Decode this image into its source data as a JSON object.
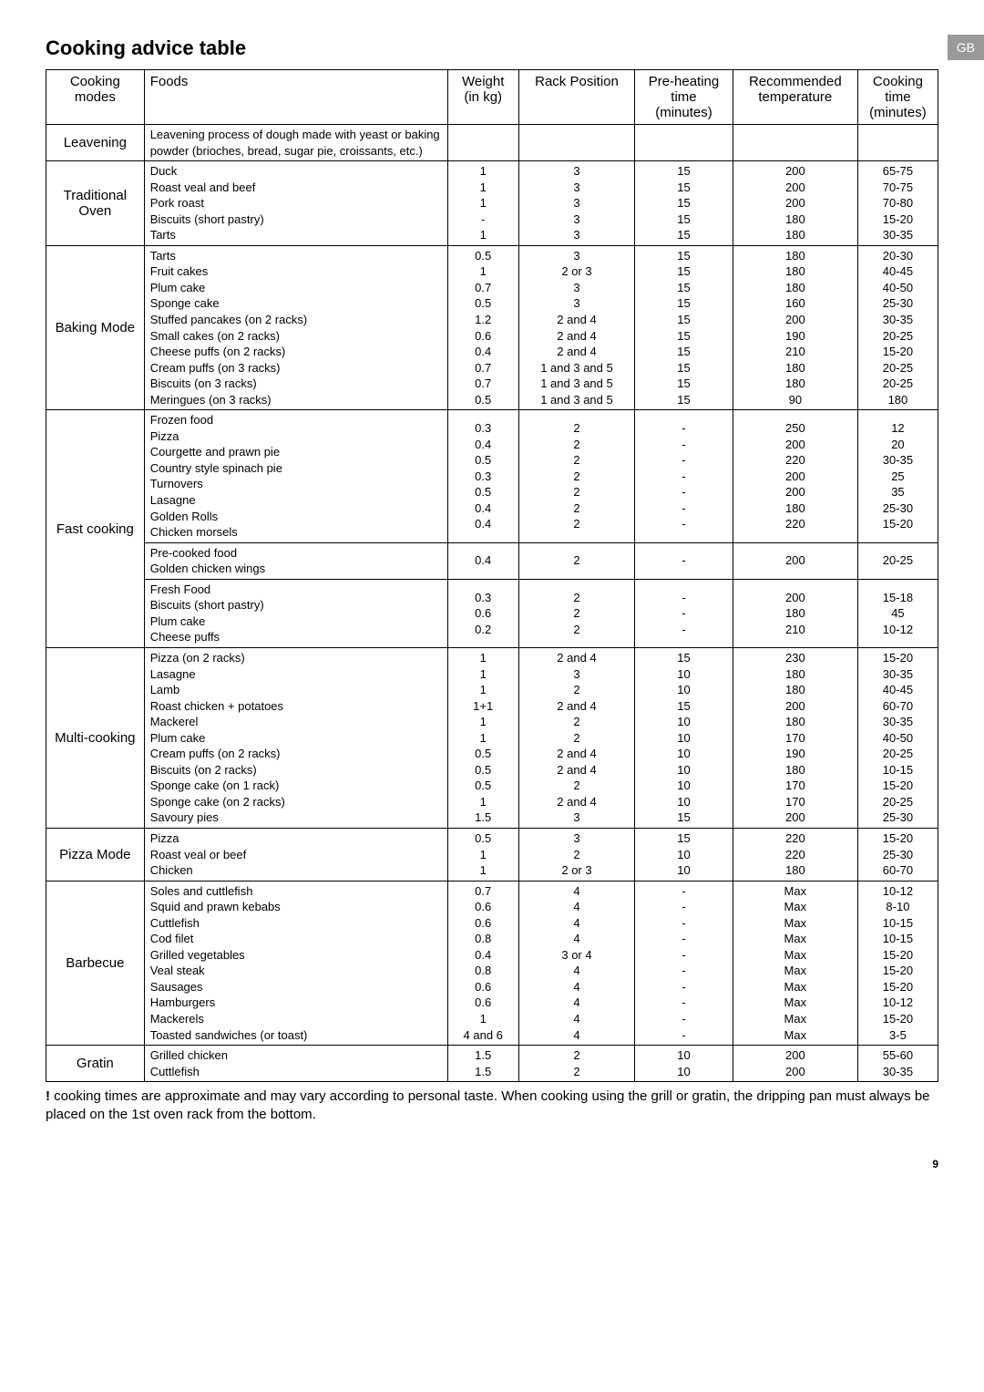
{
  "page": {
    "gb_label": "GB",
    "title": "Cooking advice table",
    "footnote_prefix": "!",
    "footnote": " cooking times are approximate and may vary according to personal taste.  When cooking using the grill or gratin, the dripping pan must always be placed on the 1st oven rack from the bottom.",
    "page_number": "9"
  },
  "headers": {
    "mode": "Cooking modes",
    "foods": "Foods",
    "weight": "Weight (in kg)",
    "rack": "Rack Position",
    "preheat": "Pre-heating time (minutes)",
    "temp": "Recommended temperature",
    "ctime": "Cooking time (minutes)"
  },
  "rows": [
    {
      "mode": "Leavening",
      "groups": [
        {
          "foods": [
            "Leavening process of dough made with yeast or baking powder (brioches, bread, sugar pie, croissants, etc.)"
          ],
          "weight": [
            ""
          ],
          "rack": [
            ""
          ],
          "preheat": [
            ""
          ],
          "temp": [
            ""
          ],
          "ctime": [
            ""
          ]
        }
      ]
    },
    {
      "mode": "Traditional Oven",
      "groups": [
        {
          "foods": [
            "Duck",
            "Roast veal and beef",
            "Pork roast",
            "Biscuits (short pastry)",
            "Tarts"
          ],
          "weight": [
            "1",
            "1",
            "1",
            "-",
            "1"
          ],
          "rack": [
            "3",
            "3",
            "3",
            "3",
            "3"
          ],
          "preheat": [
            "15",
            "15",
            "15",
            "15",
            "15"
          ],
          "temp": [
            "200",
            "200",
            "200",
            "180",
            "180"
          ],
          "ctime": [
            "65-75",
            "70-75",
            "70-80",
            "15-20",
            "30-35"
          ]
        }
      ]
    },
    {
      "mode": "Baking Mode",
      "groups": [
        {
          "foods": [
            "Tarts",
            "Fruit cakes",
            "Plum cake",
            "Sponge cake",
            "Stuffed pancakes (on 2 racks)",
            "Small cakes (on 2 racks)",
            "Cheese puffs (on 2 racks)",
            "Cream puffs (on 3 racks)",
            "Biscuits (on 3 racks)",
            "Meringues (on 3 racks)"
          ],
          "weight": [
            "0.5",
            "1",
            "0.7",
            "0.5",
            "1.2",
            "0.6",
            "0.4",
            "0.7",
            "0.7",
            "0.5"
          ],
          "rack": [
            "3",
            "2 or 3",
            "3",
            "3",
            "2 and 4",
            "2 and 4",
            "2 and 4",
            "1 and 3 and 5",
            "1 and 3 and 5",
            "1 and 3 and 5"
          ],
          "preheat": [
            "15",
            "15",
            "15",
            "15",
            "15",
            "15",
            "15",
            "15",
            "15",
            "15"
          ],
          "temp": [
            "180",
            "180",
            "180",
            "160",
            "200",
            "190",
            "210",
            "180",
            "180",
            "90"
          ],
          "ctime": [
            "20-30",
            "40-45",
            "40-50",
            "25-30",
            "30-35",
            "20-25",
            "15-20",
            "20-25",
            "20-25",
            "180"
          ]
        }
      ]
    },
    {
      "mode": "Fast cooking",
      "groups": [
        {
          "foods": [
            "Frozen food",
            "Pizza",
            "Courgette and prawn pie",
            "Country style spinach pie",
            "Turnovers",
            "Lasagne",
            "Golden Rolls",
            "Chicken morsels"
          ],
          "weight": [
            "",
            "0.3",
            "0.4",
            "0.5",
            "0.3",
            "0.5",
            "0.4",
            "0.4"
          ],
          "rack": [
            "",
            "2",
            "2",
            "2",
            "2",
            "2",
            "2",
            "2"
          ],
          "preheat": [
            "",
            "-",
            "-",
            "-",
            "-",
            "-",
            "-",
            "-"
          ],
          "temp": [
            "",
            "250",
            "200",
            "220",
            "200",
            "200",
            "180",
            "220"
          ],
          "ctime": [
            "",
            "12",
            "20",
            "30-35",
            "25",
            "35",
            "25-30",
            "15-20"
          ]
        },
        {
          "foods": [
            "Pre-cooked food",
            "Golden chicken wings"
          ],
          "weight": [
            "",
            "0.4"
          ],
          "rack": [
            "",
            "2"
          ],
          "preheat": [
            "",
            "-"
          ],
          "temp": [
            "",
            "200"
          ],
          "ctime": [
            "",
            "20-25"
          ]
        },
        {
          "foods": [
            "Fresh Food",
            "Biscuits (short pastry)",
            "Plum cake",
            "Cheese puffs"
          ],
          "weight": [
            "",
            "0.3",
            "0.6",
            "0.2"
          ],
          "rack": [
            "",
            "2",
            "2",
            "2"
          ],
          "preheat": [
            "",
            "-",
            "-",
            "-"
          ],
          "temp": [
            "",
            "200",
            "180",
            "210"
          ],
          "ctime": [
            "",
            "15-18",
            "45",
            "10-12"
          ]
        }
      ]
    },
    {
      "mode": "Multi-cooking",
      "groups": [
        {
          "foods": [
            "Pizza (on 2 racks)",
            "Lasagne",
            "Lamb",
            "Roast chicken + potatoes",
            "Mackerel",
            "Plum cake",
            "Cream puffs (on 2 racks)",
            "Biscuits (on 2 racks)",
            "Sponge cake (on 1 rack)",
            "Sponge cake (on 2 racks)",
            "Savoury pies"
          ],
          "weight": [
            "1",
            "1",
            "1",
            "1+1",
            "1",
            "1",
            "0.5",
            "0.5",
            "0.5",
            "1",
            "1.5"
          ],
          "rack": [
            "2 and 4",
            "3",
            "2",
            "2 and 4",
            "2",
            "2",
            "2 and 4",
            "2 and 4",
            "2",
            "2 and 4",
            "3"
          ],
          "preheat": [
            "15",
            "10",
            "10",
            "15",
            "10",
            "10",
            "10",
            "10",
            "10",
            "10",
            "15"
          ],
          "temp": [
            "230",
            "180",
            "180",
            "200",
            "180",
            "170",
            "190",
            "180",
            "170",
            "170",
            "200"
          ],
          "ctime": [
            "15-20",
            "30-35",
            "40-45",
            "60-70",
            "30-35",
            "40-50",
            "20-25",
            "10-15",
            "15-20",
            "20-25",
            "25-30"
          ]
        }
      ]
    },
    {
      "mode": "Pizza Mode",
      "groups": [
        {
          "foods": [
            "Pizza",
            "Roast veal or beef",
            "Chicken"
          ],
          "weight": [
            "0.5",
            "1",
            "1"
          ],
          "rack": [
            "3",
            "2",
            "2 or 3"
          ],
          "preheat": [
            "15",
            "10",
            "10"
          ],
          "temp": [
            "220",
            "220",
            "180"
          ],
          "ctime": [
            "15-20",
            "25-30",
            "60-70"
          ]
        }
      ]
    },
    {
      "mode": "Barbecue",
      "groups": [
        {
          "foods": [
            "Soles and cuttlefish",
            "Squid and prawn kebabs",
            "Cuttlefish",
            "Cod filet",
            "Grilled vegetables",
            "Veal steak",
            "Sausages",
            "Hamburgers",
            "Mackerels",
            "Toasted sandwiches (or toast)"
          ],
          "weight": [
            "0.7",
            "0.6",
            "0.6",
            "0.8",
            "0.4",
            "0.8",
            "0.6",
            "0.6",
            "1",
            "4 and 6"
          ],
          "rack": [
            "4",
            "4",
            "4",
            "4",
            "3 or 4",
            "4",
            "4",
            "4",
            "4",
            "4"
          ],
          "preheat": [
            "-",
            "-",
            "-",
            "-",
            "-",
            "-",
            "-",
            "-",
            "-",
            "-"
          ],
          "temp": [
            "Max",
            "Max",
            "Max",
            "Max",
            "Max",
            "Max",
            "Max",
            "Max",
            "Max",
            "Max"
          ],
          "ctime": [
            "10-12",
            "8-10",
            "10-15",
            "10-15",
            "15-20",
            "15-20",
            "15-20",
            "10-12",
            "15-20",
            "3-5"
          ]
        }
      ]
    },
    {
      "mode": "Gratin",
      "groups": [
        {
          "foods": [
            "Grilled chicken",
            "Cuttlefish"
          ],
          "weight": [
            "1.5",
            "1.5"
          ],
          "rack": [
            "2",
            "2"
          ],
          "preheat": [
            "10",
            "10"
          ],
          "temp": [
            "200",
            "200"
          ],
          "ctime": [
            "55-60",
            "30-35"
          ]
        }
      ]
    }
  ]
}
